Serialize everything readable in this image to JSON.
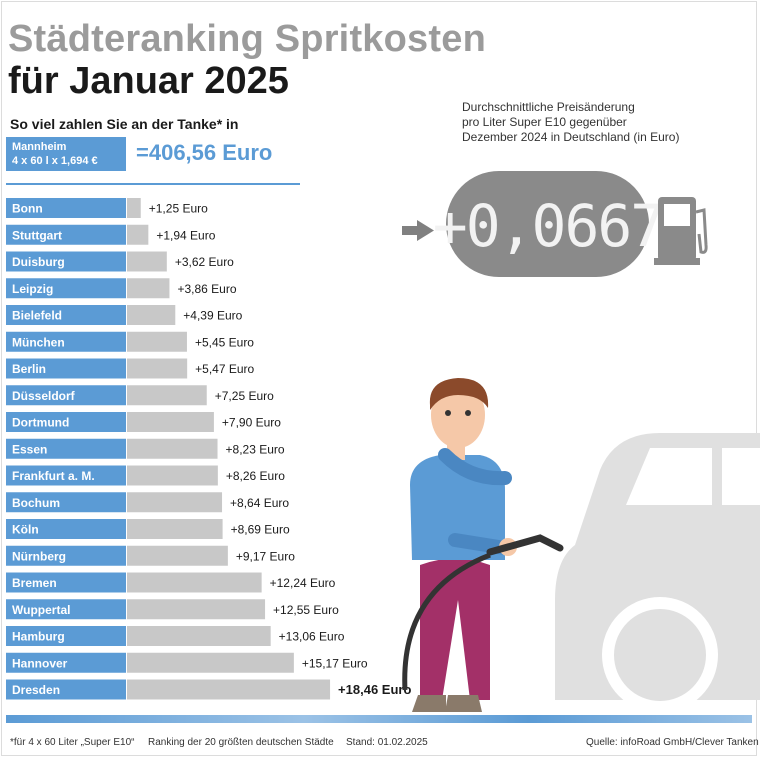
{
  "title": {
    "line1": "Städteranking Spritkosten",
    "line2": "für Januar 2025"
  },
  "subtitle": "So viel zahlen Sie an der Tanke* in",
  "reference": {
    "city": "Mannheim",
    "formula": "4 x 60 l x 1,694 €",
    "value": "=406,56 Euro"
  },
  "info": {
    "line1": "Durchschnittliche Preisänderung",
    "line2": "pro Liter Super E10 gegenüber",
    "line3": "Dezember 2024 in Deutschland (in Euro)",
    "display": "+0,0667"
  },
  "footer": {
    "note": "*für 4 x 60 Liter „Super E10“",
    "ranking": "Ranking der 20 größten deutschen Städte",
    "date": "Stand: 01.02.2025",
    "source": "Quelle: infoRoad GmbH/Clever Tanken"
  },
  "colors": {
    "label_blue": "#5b9bd5",
    "bar_gray": "#c8c8c8",
    "title_gray": "#9b9b9b",
    "display_gray": "#8a8a8a"
  },
  "icons": [
    "arrow-right-icon",
    "fuel-pump-icon",
    "car-icon",
    "person-with-nozzle-icon"
  ],
  "chart_data": {
    "type": "bar",
    "orientation": "horizontal",
    "categories": [
      "Bonn",
      "Stuttgart",
      "Duisburg",
      "Leipzig",
      "Bielefeld",
      "München",
      "Berlin",
      "Düsseldorf",
      "Dortmund",
      "Essen",
      "Frankfurt a. M.",
      "Bochum",
      "Köln",
      "Nürnberg",
      "Bremen",
      "Wuppertal",
      "Hamburg",
      "Hannover",
      "Dresden"
    ],
    "values": [
      1.25,
      1.94,
      3.62,
      3.86,
      4.39,
      5.45,
      5.47,
      7.25,
      7.9,
      8.23,
      8.26,
      8.64,
      8.69,
      9.17,
      12.24,
      12.55,
      13.06,
      15.17,
      18.46
    ],
    "value_labels": [
      "+1,25 Euro",
      "+1,94 Euro",
      "+3,62 Euro",
      "+3,86 Euro",
      "+4,39 Euro",
      "+5,45 Euro",
      "+5,47 Euro",
      "+7,25 Euro",
      "+7,90 Euro",
      "+8,23 Euro",
      "+8,26 Euro",
      "+8,64 Euro",
      "+8,69 Euro",
      "+9,17 Euro",
      "+12,24 Euro",
      "+12,55 Euro",
      "+13,06 Euro",
      "+15,17 Euro",
      "+18,46 Euro"
    ],
    "highlight": "Dresden",
    "xlim": [
      0,
      18.46
    ]
  }
}
